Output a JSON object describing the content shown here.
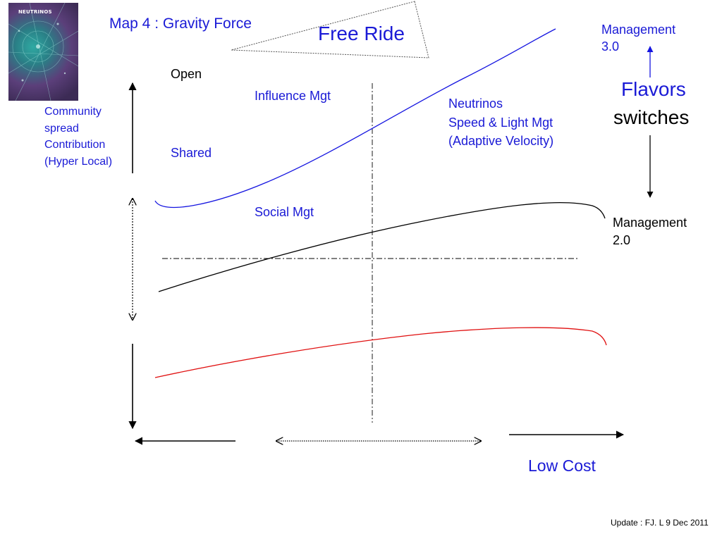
{
  "cover_thumbnail": {
    "title": "NEUTRINOS"
  },
  "header": {
    "map_title": "Map 4 : Gravity Force",
    "free_ride": "Free Ride"
  },
  "labels": {
    "open": "Open",
    "influence_mgt": "Influence Mgt",
    "shared": "Shared",
    "social_mgt": "Social Mgt",
    "community_lines": [
      "Community",
      "spread",
      "Contribution",
      "(Hyper Local)"
    ],
    "neutrinos_lines": [
      "Neutrinos",
      "Speed & Light Mgt",
      "(Adaptive Velocity)"
    ],
    "management_30_lines": [
      "Management",
      "3.0"
    ],
    "management_20_lines": [
      "Management",
      "2.0"
    ],
    "flavors": "Flavors",
    "switches": "switches",
    "low_cost": "Low Cost"
  },
  "footer": {
    "update": "Update : FJ. L  9 Dec 2011"
  },
  "colors": {
    "blue_text": "#1a1ad6",
    "blue_curve": "#1515e0",
    "red_curve": "#e01010",
    "black": "#000000"
  }
}
